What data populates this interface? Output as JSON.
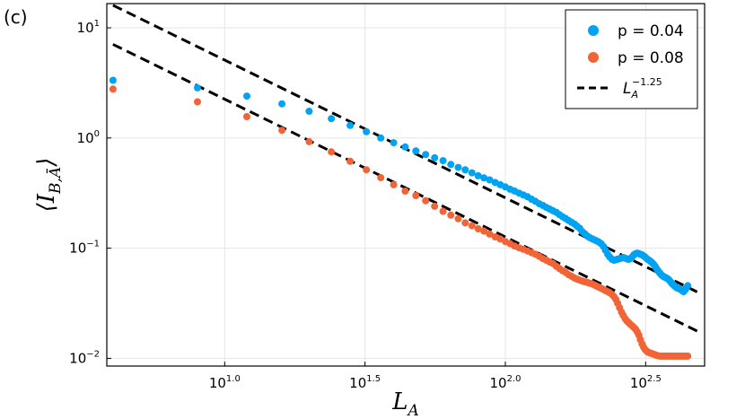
{
  "panel_label": "(c)",
  "chart_data": {
    "type": "scatter",
    "xscale": "log10",
    "yscale": "log10",
    "xlim_log10": [
      0.58,
      2.71
    ],
    "ylim_log10": [
      -2.07,
      1.22
    ],
    "grid": true,
    "xlabel": "L_A",
    "ylabel": "⟨I_{B,Ā}⟩",
    "legend_placement": "top-right",
    "xticks": [
      {
        "value": 1.0,
        "base": "10",
        "exp": "1.0"
      },
      {
        "value": 1.5,
        "base": "10",
        "exp": "1.5"
      },
      {
        "value": 2.0,
        "base": "10",
        "exp": "2.0"
      },
      {
        "value": 2.5,
        "base": "10",
        "exp": "2.5"
      }
    ],
    "yticks": [
      {
        "value": -2,
        "base": "10",
        "exp": "−2"
      },
      {
        "value": -1,
        "base": "10",
        "exp": "−1"
      },
      {
        "value": 0,
        "base": "10",
        "exp": "0"
      },
      {
        "value": 1,
        "base": "10",
        "exp": "1"
      }
    ],
    "series": [
      {
        "name": "p = 0.04",
        "color": "#00a2f2",
        "markers": [
          [
            0.602,
            0.524
          ],
          [
            0.903,
            0.455
          ],
          [
            1.079,
            0.38
          ],
          [
            1.204,
            0.31
          ],
          [
            1.301,
            0.243
          ],
          [
            1.38,
            0.176
          ],
          [
            1.447,
            0.114
          ],
          [
            1.505,
            0.057
          ],
          [
            1.556,
            0.0
          ],
          [
            1.602,
            -0.043
          ],
          [
            1.643,
            -0.081
          ],
          [
            1.681,
            -0.117
          ],
          [
            1.716,
            -0.15
          ],
          [
            1.748,
            -0.18
          ],
          [
            1.778,
            -0.206
          ],
          [
            1.806,
            -0.24
          ],
          [
            1.832,
            -0.267
          ],
          [
            1.857,
            -0.289
          ],
          [
            1.881,
            -0.316
          ],
          [
            1.903,
            -0.343
          ],
          [
            1.924,
            -0.362
          ],
          [
            1.944,
            -0.38
          ],
          [
            1.964,
            -0.404
          ],
          [
            1.982,
            -0.424
          ],
          [
            2.0,
            -0.444
          ],
          [
            2.017,
            -0.465
          ],
          [
            2.033,
            -0.481
          ],
          [
            2.049,
            -0.5
          ],
          [
            2.064,
            -0.516
          ],
          [
            2.079,
            -0.533
          ],
          [
            2.093,
            -0.555
          ],
          [
            2.107,
            -0.575
          ],
          [
            2.121,
            -0.597
          ],
          [
            2.134,
            -0.612
          ],
          [
            2.146,
            -0.63
          ],
          [
            2.158,
            -0.645
          ],
          [
            2.17,
            -0.66
          ],
          [
            2.182,
            -0.675
          ],
          [
            2.193,
            -0.695
          ],
          [
            2.204,
            -0.715
          ],
          [
            2.215,
            -0.73
          ],
          [
            2.225,
            -0.748
          ],
          [
            2.236,
            -0.765
          ],
          [
            2.246,
            -0.78
          ],
          [
            2.255,
            -0.8
          ],
          [
            2.265,
            -0.82
          ],
          [
            2.274,
            -0.85
          ],
          [
            2.283,
            -0.87
          ],
          [
            2.292,
            -0.89
          ],
          [
            2.301,
            -0.905
          ],
          [
            2.31,
            -0.915
          ],
          [
            2.318,
            -0.925
          ],
          [
            2.326,
            -0.935
          ],
          [
            2.334,
            -0.945
          ],
          [
            2.342,
            -0.96
          ],
          [
            2.35,
            -0.985
          ],
          [
            2.357,
            -1.02
          ],
          [
            2.365,
            -1.055
          ],
          [
            2.372,
            -1.08
          ],
          [
            2.38,
            -1.1
          ],
          [
            2.387,
            -1.11
          ],
          [
            2.394,
            -1.105
          ],
          [
            2.4,
            -1.1
          ],
          [
            2.407,
            -1.095
          ],
          [
            2.414,
            -1.09
          ],
          [
            2.42,
            -1.085
          ],
          [
            2.427,
            -1.09
          ],
          [
            2.433,
            -1.098
          ],
          [
            2.439,
            -1.102
          ],
          [
            2.445,
            -1.095
          ],
          [
            2.452,
            -1.08
          ],
          [
            2.458,
            -1.06
          ],
          [
            2.464,
            -1.05
          ],
          [
            2.47,
            -1.045
          ],
          [
            2.476,
            -1.05
          ],
          [
            2.481,
            -1.055
          ],
          [
            2.487,
            -1.06
          ],
          [
            2.493,
            -1.07
          ],
          [
            2.498,
            -1.08
          ],
          [
            2.504,
            -1.095
          ],
          [
            2.509,
            -1.105
          ],
          [
            2.515,
            -1.115
          ],
          [
            2.52,
            -1.125
          ],
          [
            2.526,
            -1.14
          ],
          [
            2.531,
            -1.155
          ],
          [
            2.536,
            -1.175
          ],
          [
            2.541,
            -1.195
          ],
          [
            2.547,
            -1.215
          ],
          [
            2.552,
            -1.23
          ],
          [
            2.557,
            -1.245
          ],
          [
            2.562,
            -1.255
          ],
          [
            2.567,
            -1.262
          ],
          [
            2.572,
            -1.268
          ],
          [
            2.577,
            -1.275
          ],
          [
            2.582,
            -1.285
          ],
          [
            2.587,
            -1.3
          ],
          [
            2.592,
            -1.315
          ],
          [
            2.597,
            -1.33
          ],
          [
            2.602,
            -1.34
          ],
          [
            2.606,
            -1.35
          ],
          [
            2.611,
            -1.36
          ],
          [
            2.616,
            -1.365
          ],
          [
            2.621,
            -1.37
          ],
          [
            2.625,
            -1.375
          ],
          [
            2.63,
            -1.385
          ],
          [
            2.635,
            -1.395
          ],
          [
            2.64,
            -1.38
          ],
          [
            2.645,
            -1.36
          ],
          [
            2.65,
            -1.34
          ]
        ]
      },
      {
        "name": "p = 0.08",
        "color": "#f06438",
        "markers": [
          [
            0.602,
            0.444
          ],
          [
            0.903,
            0.328
          ],
          [
            1.079,
            0.194
          ],
          [
            1.204,
            0.07
          ],
          [
            1.301,
            -0.033
          ],
          [
            1.38,
            -0.125
          ],
          [
            1.447,
            -0.212
          ],
          [
            1.505,
            -0.288
          ],
          [
            1.556,
            -0.36
          ],
          [
            1.602,
            -0.424
          ],
          [
            1.643,
            -0.482
          ],
          [
            1.681,
            -0.523
          ],
          [
            1.716,
            -0.569
          ],
          [
            1.748,
            -0.62
          ],
          [
            1.778,
            -0.665
          ],
          [
            1.806,
            -0.7
          ],
          [
            1.832,
            -0.733
          ],
          [
            1.857,
            -0.77
          ],
          [
            1.881,
            -0.796
          ],
          [
            1.903,
            -0.824
          ],
          [
            1.924,
            -0.845
          ],
          [
            1.944,
            -0.872
          ],
          [
            1.964,
            -0.897
          ],
          [
            1.982,
            -0.917
          ],
          [
            2.0,
            -0.94
          ],
          [
            2.017,
            -0.959
          ],
          [
            2.033,
            -0.98
          ],
          [
            2.049,
            -0.997
          ],
          [
            2.064,
            -1.01
          ],
          [
            2.079,
            -1.025
          ],
          [
            2.093,
            -1.04
          ],
          [
            2.107,
            -1.055
          ],
          [
            2.121,
            -1.075
          ],
          [
            2.134,
            -1.095
          ],
          [
            2.146,
            -1.11
          ],
          [
            2.158,
            -1.125
          ],
          [
            2.17,
            -1.14
          ],
          [
            2.182,
            -1.165
          ],
          [
            2.193,
            -1.185
          ],
          [
            2.204,
            -1.205
          ],
          [
            2.215,
            -1.22
          ],
          [
            2.225,
            -1.24
          ],
          [
            2.236,
            -1.255
          ],
          [
            2.246,
            -1.27
          ],
          [
            2.255,
            -1.28
          ],
          [
            2.265,
            -1.29
          ],
          [
            2.274,
            -1.298
          ],
          [
            2.283,
            -1.305
          ],
          [
            2.292,
            -1.31
          ],
          [
            2.301,
            -1.318
          ],
          [
            2.31,
            -1.325
          ],
          [
            2.318,
            -1.335
          ],
          [
            2.326,
            -1.345
          ],
          [
            2.334,
            -1.355
          ],
          [
            2.342,
            -1.365
          ],
          [
            2.35,
            -1.375
          ],
          [
            2.357,
            -1.385
          ],
          [
            2.365,
            -1.395
          ],
          [
            2.372,
            -1.405
          ],
          [
            2.38,
            -1.42
          ],
          [
            2.387,
            -1.44
          ],
          [
            2.394,
            -1.465
          ],
          [
            2.4,
            -1.5
          ],
          [
            2.407,
            -1.54
          ],
          [
            2.414,
            -1.58
          ],
          [
            2.42,
            -1.61
          ],
          [
            2.427,
            -1.64
          ],
          [
            2.433,
            -1.66
          ],
          [
            2.439,
            -1.675
          ],
          [
            2.445,
            -1.69
          ],
          [
            2.452,
            -1.705
          ],
          [
            2.458,
            -1.72
          ],
          [
            2.464,
            -1.735
          ],
          [
            2.47,
            -1.76
          ],
          [
            2.476,
            -1.79
          ],
          [
            2.481,
            -1.83
          ],
          [
            2.487,
            -1.87
          ],
          [
            2.493,
            -1.9
          ],
          [
            2.498,
            -1.92
          ],
          [
            2.504,
            -1.935
          ],
          [
            2.509,
            -1.945
          ],
          [
            2.515,
            -1.95
          ],
          [
            2.52,
            -1.955
          ],
          [
            2.526,
            -1.96
          ],
          [
            2.531,
            -1.965
          ],
          [
            2.536,
            -1.97
          ],
          [
            2.541,
            -1.975
          ],
          [
            2.547,
            -1.978
          ],
          [
            2.552,
            -1.98
          ],
          [
            2.557,
            -1.98
          ],
          [
            2.562,
            -1.98
          ],
          [
            2.567,
            -1.98
          ],
          [
            2.572,
            -1.98
          ],
          [
            2.577,
            -1.98
          ],
          [
            2.582,
            -1.98
          ],
          [
            2.587,
            -1.98
          ],
          [
            2.592,
            -1.98
          ],
          [
            2.597,
            -1.98
          ],
          [
            2.602,
            -1.98
          ],
          [
            2.606,
            -1.98
          ],
          [
            2.611,
            -1.98
          ],
          [
            2.616,
            -1.98
          ],
          [
            2.621,
            -1.98
          ],
          [
            2.625,
            -1.98
          ],
          [
            2.63,
            -1.98
          ],
          [
            2.635,
            -1.98
          ],
          [
            2.64,
            -1.98
          ],
          [
            2.645,
            -1.98
          ],
          [
            2.65,
            -1.98
          ]
        ]
      }
    ],
    "reference_lines": [
      {
        "legend": true,
        "slope": -1.25,
        "points": [
          [
            0.602,
            1.205
          ],
          [
            2.7,
            -1.418
          ]
        ]
      },
      {
        "legend": false,
        "slope": -1.25,
        "points": [
          [
            0.602,
            0.85
          ],
          [
            2.7,
            -1.773
          ]
        ]
      }
    ],
    "legend": [
      {
        "label": "p = 0.04",
        "kind": "marker",
        "color": "#00a2f2"
      },
      {
        "label": "p = 0.08",
        "kind": "marker",
        "color": "#f06438"
      },
      {
        "label_base": "L",
        "label_sub": "A",
        "label_sup": "−1.25",
        "kind": "dashed-line",
        "color": "#000000"
      }
    ]
  }
}
